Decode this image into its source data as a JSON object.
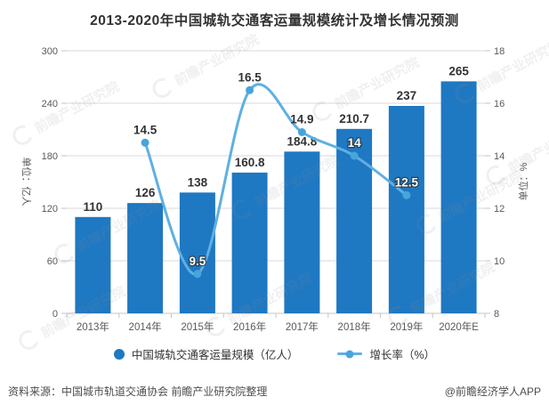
{
  "watermark": "前瞻产业研究院",
  "chart_data": {
    "type": "combo",
    "title": "2013-2020年中国城轨交通客运量规模统计及增长情况预测",
    "categories": [
      "2013年",
      "2014年",
      "2015年",
      "2016年",
      "2017年",
      "2018年",
      "2019年",
      "2020年E"
    ],
    "series": [
      {
        "name": "中国城轨交通客运量规模（亿人）",
        "type": "bar",
        "axis": "left",
        "color": "#1f78c2",
        "values": [
          110,
          126,
          138,
          160.8,
          184.8,
          210.7,
          237,
          265
        ]
      },
      {
        "name": "增长率（%）",
        "type": "line",
        "axis": "right",
        "color": "#5fb0e2",
        "marker_color": "#47a4dc",
        "values": [
          null,
          14.5,
          9.5,
          16.5,
          14.9,
          14,
          12.5,
          null
        ]
      }
    ],
    "left_axis": {
      "label": "单位：亿人",
      "min": 0,
      "max": 300,
      "step": 60
    },
    "right_axis": {
      "label": "单位：%",
      "min": 8,
      "max": 18,
      "step": 2
    },
    "grid": true,
    "legend_position": "bottom"
  },
  "colors": {
    "grid": "#d9d9d9",
    "axis_line": "#c4c4c4",
    "axis_text": "#595959",
    "label_dark": "#333333",
    "label_light": "#ffffff"
  },
  "footer": {
    "source": "资料来源：中国城市轨道交通协会 前瞻产业研究院整理",
    "credit": "@前瞻经济学人APP"
  }
}
